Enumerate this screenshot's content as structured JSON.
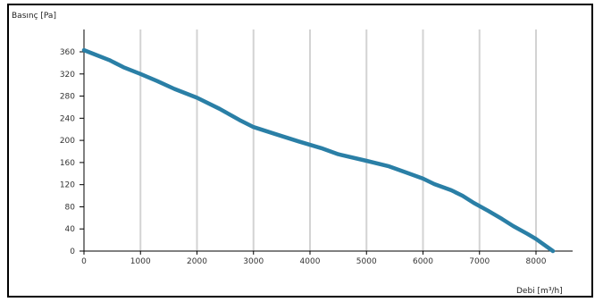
{
  "colors": {
    "curve": "#2a7fa6",
    "grid": "#d3d3d3",
    "axis": "#000000"
  },
  "chart_data": {
    "type": "line",
    "title": "",
    "xlabel": "Debi [m³/h]",
    "ylabel": "Basınç [Pa]",
    "xlim": [
      0,
      8600
    ],
    "ylim": [
      0,
      380
    ],
    "x_ticks": [
      0,
      1000,
      2000,
      3000,
      4000,
      5000,
      6000,
      7000,
      8000
    ],
    "y_ticks": [
      0,
      40,
      80,
      120,
      160,
      200,
      240,
      280,
      320,
      360
    ],
    "grid": "vertical",
    "series": [
      {
        "x": [
          0,
          200,
          450,
          700,
          1000,
          1300,
          1600,
          2000,
          2400,
          2750,
          3000,
          3400,
          3800,
          4200,
          4500,
          5000,
          5400,
          5700,
          6000,
          6200,
          6500,
          6700,
          6900,
          7150,
          7400,
          7600,
          7850,
          8000,
          8300
        ],
        "y": [
          363,
          355,
          345,
          332,
          320,
          307,
          293,
          277,
          257,
          237,
          224,
          211,
          198,
          186,
          175,
          163,
          153,
          142,
          131,
          121,
          110,
          100,
          87,
          73,
          58,
          45,
          31,
          22,
          0
        ]
      }
    ]
  }
}
